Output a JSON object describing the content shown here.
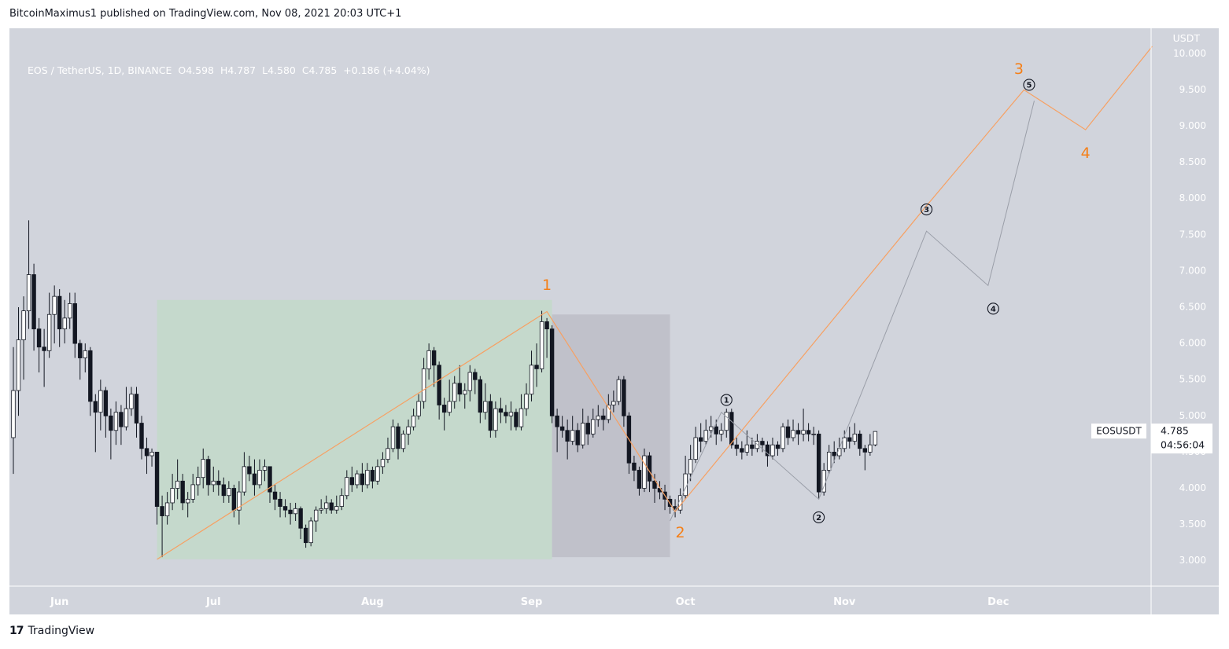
{
  "header": {
    "published": "BitcoinMaximus1 published on TradingView.com, Nov 08, 2021 20:03 UTC+1"
  },
  "legend": {
    "symbol": "EOS / TetherUS, 1D, BINANCE",
    "open_label": "O",
    "open": "4.598",
    "high_label": "H",
    "high": "4.787",
    "low_label": "L",
    "low": "4.580",
    "close_label": "C",
    "close": "4.785",
    "change": "+0.186 (+4.04%)"
  },
  "footer": {
    "brand": "TradingView",
    "mark": "17"
  },
  "colors": {
    "background": "#d1d4dc",
    "wave_orange": "#f7a062",
    "wave_label": "#f57f17",
    "sub_wave": "#9a9ea8",
    "green_zone": "#c5d9cc",
    "grey_zone": "#c0c1ca",
    "up_candle": "#ffffff",
    "down_candle": "#131722"
  },
  "chart_data": {
    "type": "candlestick",
    "title": "EOS / TetherUS, 1D, BINANCE",
    "currency": "USDT",
    "ylim": [
      2.65,
      10.35
    ],
    "y_ticks": [
      "3.000",
      "3.500",
      "4.000",
      "4.500",
      "5.000",
      "5.500",
      "6.000",
      "6.500",
      "7.000",
      "7.500",
      "8.000",
      "8.500",
      "9.000",
      "9.500",
      "10.000"
    ],
    "x_ticks": [
      {
        "label": "Jun",
        "day": 9
      },
      {
        "label": "Jul",
        "day": 39
      },
      {
        "label": "Aug",
        "day": 70
      },
      {
        "label": "Sep",
        "day": 101
      },
      {
        "label": "Oct",
        "day": 131
      },
      {
        "label": "Nov",
        "day": 162
      },
      {
        "label": "Dec",
        "day": 192
      }
    ],
    "x_range_days": [
      0,
      222
    ],
    "last_price": {
      "symbol": "EOSUSDT",
      "price": "4.785",
      "countdown": "04:56:04"
    },
    "zones": [
      {
        "name": "impulse-wave-1",
        "start_day": 28,
        "end_day": 105,
        "low": 3.02,
        "high": 6.6
      },
      {
        "name": "correction-wave-2",
        "start_day": 105,
        "end_day": 128,
        "low": 3.05,
        "high": 6.4
      }
    ],
    "orange_wave": {
      "points": [
        [
          28,
          3.02
        ],
        [
          104,
          6.44
        ],
        [
          129,
          3.68
        ],
        [
          178,
          7.9
        ],
        [
          197,
          9.5
        ],
        [
          209,
          8.95
        ],
        [
          222,
          10.1
        ]
      ],
      "labels": [
        {
          "text": "1",
          "day": 104,
          "price": 6.8
        },
        {
          "text": "2",
          "day": 130,
          "price": 3.38
        },
        {
          "text": "3",
          "day": 196,
          "price": 9.78
        },
        {
          "text": "4",
          "day": 209,
          "price": 8.62
        }
      ]
    },
    "sub_wave": {
      "points": [
        [
          128,
          3.55
        ],
        [
          138,
          5.05
        ],
        [
          157,
          3.85
        ],
        [
          178,
          7.55
        ],
        [
          190,
          6.8
        ],
        [
          199,
          9.35
        ]
      ],
      "labels": [
        {
          "text": "1",
          "day": 139,
          "price": 5.22
        },
        {
          "text": "2",
          "day": 157,
          "price": 3.6
        },
        {
          "text": "3",
          "day": 178,
          "price": 7.85
        },
        {
          "text": "4",
          "day": 191,
          "price": 6.48
        },
        {
          "text": "5",
          "day": 198,
          "price": 9.57
        }
      ]
    },
    "candles": [
      [
        4.7,
        5.35,
        5.95,
        4.2
      ],
      [
        5.35,
        6.05,
        6.5,
        5.0
      ],
      [
        6.05,
        6.45,
        6.65,
        5.5
      ],
      [
        6.45,
        6.95,
        7.7,
        6.2
      ],
      [
        6.95,
        6.2,
        7.1,
        5.9
      ],
      [
        6.2,
        5.95,
        6.35,
        5.6
      ],
      [
        5.95,
        5.9,
        6.2,
        5.4
      ],
      [
        5.9,
        6.4,
        6.7,
        5.8
      ],
      [
        6.4,
        6.65,
        6.8,
        6.0
      ],
      [
        6.65,
        6.2,
        6.75,
        5.95
      ],
      [
        6.2,
        6.35,
        6.6,
        6.0
      ],
      [
        6.35,
        6.55,
        6.7,
        6.2
      ],
      [
        6.55,
        6.0,
        6.7,
        5.8
      ],
      [
        6.0,
        5.8,
        6.05,
        5.5
      ],
      [
        5.8,
        5.9,
        6.0,
        5.6
      ],
      [
        5.9,
        5.2,
        5.95,
        5.0
      ],
      [
        5.2,
        5.05,
        5.3,
        4.5
      ],
      [
        5.05,
        5.35,
        5.5,
        4.8
      ],
      [
        5.35,
        5.0,
        5.4,
        4.7
      ],
      [
        5.0,
        4.8,
        5.1,
        4.4
      ],
      [
        4.8,
        5.05,
        5.2,
        4.6
      ],
      [
        5.05,
        4.85,
        5.15,
        4.6
      ],
      [
        4.85,
        5.1,
        5.4,
        4.8
      ],
      [
        5.1,
        5.3,
        5.4,
        5.0
      ],
      [
        5.3,
        4.9,
        5.4,
        4.7
      ],
      [
        4.9,
        4.55,
        5.0,
        4.4
      ],
      [
        4.55,
        4.45,
        4.7,
        4.2
      ],
      [
        4.45,
        4.5,
        4.55,
        4.3
      ],
      [
        4.5,
        3.75,
        4.5,
        3.5
      ],
      [
        3.75,
        3.62,
        3.9,
        3.05
      ],
      [
        3.62,
        3.8,
        3.95,
        3.5
      ],
      [
        3.8,
        4.0,
        4.2,
        3.7
      ],
      [
        4.0,
        4.1,
        4.4,
        3.85
      ],
      [
        4.1,
        3.8,
        4.2,
        3.7
      ],
      [
        3.8,
        3.85,
        3.95,
        3.6
      ],
      [
        3.85,
        4.05,
        4.2,
        3.8
      ],
      [
        4.05,
        4.15,
        4.3,
        3.9
      ],
      [
        4.15,
        4.4,
        4.55,
        4.0
      ],
      [
        4.4,
        4.05,
        4.45,
        3.9
      ],
      [
        4.05,
        4.1,
        4.3,
        3.95
      ],
      [
        4.1,
        4.05,
        4.25,
        3.9
      ],
      [
        4.05,
        3.9,
        4.15,
        3.8
      ],
      [
        3.9,
        4.0,
        4.1,
        3.8
      ],
      [
        4.0,
        3.7,
        4.05,
        3.6
      ],
      [
        3.7,
        3.95,
        4.1,
        3.5
      ],
      [
        3.95,
        4.3,
        4.5,
        3.9
      ],
      [
        4.3,
        4.2,
        4.45,
        4.1
      ],
      [
        4.2,
        4.05,
        4.4,
        3.9
      ],
      [
        4.05,
        4.25,
        4.4,
        4.0
      ],
      [
        4.25,
        4.3,
        4.4,
        4.1
      ],
      [
        4.3,
        3.95,
        4.3,
        3.8
      ],
      [
        3.95,
        3.85,
        4.05,
        3.7
      ],
      [
        3.85,
        3.75,
        3.95,
        3.6
      ],
      [
        3.75,
        3.7,
        3.85,
        3.6
      ],
      [
        3.7,
        3.65,
        3.8,
        3.5
      ],
      [
        3.65,
        3.72,
        3.8,
        3.55
      ],
      [
        3.72,
        3.45,
        3.75,
        3.3
      ],
      [
        3.45,
        3.25,
        3.5,
        3.18
      ],
      [
        3.25,
        3.55,
        3.6,
        3.2
      ],
      [
        3.55,
        3.7,
        3.75,
        3.4
      ],
      [
        3.7,
        3.72,
        3.85,
        3.65
      ],
      [
        3.72,
        3.8,
        3.9,
        3.65
      ],
      [
        3.8,
        3.7,
        3.85,
        3.65
      ],
      [
        3.7,
        3.75,
        3.9,
        3.65
      ],
      [
        3.75,
        3.9,
        4.0,
        3.7
      ],
      [
        3.9,
        4.15,
        4.25,
        3.85
      ],
      [
        4.15,
        4.05,
        4.3,
        3.95
      ],
      [
        4.05,
        4.2,
        4.25,
        4.0
      ],
      [
        4.2,
        4.05,
        4.35,
        3.95
      ],
      [
        4.05,
        4.25,
        4.35,
        4.0
      ],
      [
        4.25,
        4.1,
        4.3,
        4.0
      ],
      [
        4.1,
        4.3,
        4.4,
        4.05
      ],
      [
        4.3,
        4.4,
        4.5,
        4.2
      ],
      [
        4.4,
        4.55,
        4.7,
        4.35
      ],
      [
        4.55,
        4.85,
        4.95,
        4.5
      ],
      [
        4.85,
        4.55,
        4.9,
        4.4
      ],
      [
        4.55,
        4.75,
        4.8,
        4.5
      ],
      [
        4.75,
        4.85,
        4.95,
        4.6
      ],
      [
        4.85,
        5.0,
        5.1,
        4.8
      ],
      [
        5.0,
        5.2,
        5.3,
        4.95
      ],
      [
        5.2,
        5.65,
        5.8,
        5.1
      ],
      [
        5.65,
        5.9,
        6.0,
        5.5
      ],
      [
        5.9,
        5.7,
        5.95,
        5.4
      ],
      [
        5.7,
        5.15,
        5.75,
        4.95
      ],
      [
        5.15,
        5.05,
        5.25,
        4.8
      ],
      [
        5.05,
        5.2,
        5.5,
        5.0
      ],
      [
        5.2,
        5.45,
        5.55,
        5.1
      ],
      [
        5.45,
        5.3,
        5.7,
        5.2
      ],
      [
        5.3,
        5.35,
        5.45,
        5.1
      ],
      [
        5.35,
        5.6,
        5.7,
        5.2
      ],
      [
        5.6,
        5.5,
        5.65,
        5.3
      ],
      [
        5.5,
        5.05,
        5.55,
        4.9
      ],
      [
        5.05,
        5.2,
        5.45,
        4.95
      ],
      [
        5.2,
        4.8,
        5.3,
        4.7
      ],
      [
        4.8,
        5.1,
        5.2,
        4.7
      ],
      [
        5.1,
        5.05,
        5.25,
        4.9
      ],
      [
        5.05,
        5.0,
        5.15,
        4.9
      ],
      [
        5.0,
        5.05,
        5.2,
        4.8
      ],
      [
        5.05,
        4.85,
        5.1,
        4.8
      ],
      [
        4.85,
        5.1,
        5.3,
        4.8
      ],
      [
        5.1,
        5.3,
        5.45,
        5.0
      ],
      [
        5.3,
        5.7,
        5.9,
        5.2
      ],
      [
        5.7,
        5.65,
        6.0,
        5.4
      ],
      [
        5.65,
        6.3,
        6.45,
        5.6
      ],
      [
        6.3,
        6.2,
        6.35,
        5.8
      ],
      [
        6.2,
        5.0,
        6.25,
        4.9
      ],
      [
        5.0,
        4.85,
        5.1,
        4.5
      ],
      [
        4.85,
        4.8,
        5.0,
        4.7
      ],
      [
        4.8,
        4.65,
        4.95,
        4.4
      ],
      [
        4.65,
        4.8,
        5.0,
        4.6
      ],
      [
        4.8,
        4.6,
        4.9,
        4.5
      ],
      [
        4.6,
        4.9,
        5.1,
        4.55
      ],
      [
        4.9,
        4.75,
        5.0,
        4.6
      ],
      [
        4.75,
        4.95,
        5.1,
        4.7
      ],
      [
        4.95,
        5.0,
        5.15,
        4.85
      ],
      [
        5.0,
        4.95,
        5.1,
        4.8
      ],
      [
        4.95,
        5.15,
        5.3,
        4.9
      ],
      [
        5.15,
        5.2,
        5.35,
        5.05
      ],
      [
        5.2,
        5.5,
        5.55,
        5.15
      ],
      [
        5.5,
        5.0,
        5.55,
        4.85
      ],
      [
        5.0,
        4.35,
        5.05,
        4.2
      ],
      [
        4.35,
        4.25,
        4.45,
        4.1
      ],
      [
        4.25,
        4.0,
        4.3,
        3.9
      ],
      [
        4.0,
        4.45,
        4.55,
        3.95
      ],
      [
        4.45,
        4.1,
        4.5,
        3.95
      ],
      [
        4.1,
        4.0,
        4.2,
        3.8
      ],
      [
        4.0,
        3.95,
        4.1,
        3.85
      ],
      [
        3.95,
        3.85,
        4.05,
        3.7
      ],
      [
        3.85,
        3.75,
        3.9,
        3.65
      ],
      [
        3.75,
        3.7,
        3.85,
        3.6
      ],
      [
        3.7,
        3.9,
        4.0,
        3.65
      ],
      [
        3.9,
        4.2,
        4.45,
        3.85
      ],
      [
        4.2,
        4.4,
        4.6,
        4.1
      ],
      [
        4.4,
        4.7,
        4.85,
        4.35
      ],
      [
        4.7,
        4.65,
        4.9,
        4.5
      ],
      [
        4.65,
        4.8,
        4.95,
        4.6
      ],
      [
        4.8,
        4.85,
        5.0,
        4.7
      ],
      [
        4.85,
        4.75,
        4.95,
        4.6
      ],
      [
        4.75,
        4.8,
        4.9,
        4.65
      ],
      [
        4.8,
        5.05,
        5.1,
        4.7
      ],
      [
        5.05,
        4.6,
        5.1,
        4.55
      ],
      [
        4.6,
        4.55,
        4.7,
        4.45
      ],
      [
        4.55,
        4.5,
        4.65,
        4.4
      ],
      [
        4.5,
        4.6,
        4.8,
        4.45
      ],
      [
        4.6,
        4.55,
        4.7,
        4.45
      ],
      [
        4.55,
        4.65,
        4.75,
        4.5
      ],
      [
        4.65,
        4.6,
        4.7,
        4.5
      ],
      [
        4.6,
        4.45,
        4.65,
        4.3
      ],
      [
        4.45,
        4.6,
        4.7,
        4.4
      ],
      [
        4.6,
        4.55,
        4.65,
        4.45
      ],
      [
        4.55,
        4.85,
        4.9,
        4.5
      ],
      [
        4.85,
        4.7,
        4.95,
        4.6
      ],
      [
        4.7,
        4.8,
        4.95,
        4.65
      ],
      [
        4.8,
        4.75,
        4.9,
        4.6
      ],
      [
        4.75,
        4.8,
        5.1,
        4.65
      ],
      [
        4.8,
        4.75,
        4.9,
        4.65
      ],
      [
        4.75,
        4.75,
        4.85,
        4.6
      ],
      [
        4.75,
        3.95,
        4.8,
        3.85
      ],
      [
        3.95,
        4.25,
        4.35,
        3.9
      ],
      [
        4.25,
        4.5,
        4.6,
        4.2
      ],
      [
        4.5,
        4.45,
        4.65,
        4.35
      ],
      [
        4.45,
        4.55,
        4.7,
        4.4
      ],
      [
        4.55,
        4.7,
        4.8,
        4.5
      ],
      [
        4.7,
        4.65,
        4.85,
        4.55
      ],
      [
        4.65,
        4.75,
        4.9,
        4.6
      ],
      [
        4.75,
        4.55,
        4.8,
        4.45
      ],
      [
        4.55,
        4.5,
        4.6,
        4.25
      ],
      [
        4.5,
        4.6,
        4.75,
        4.45
      ],
      [
        4.6,
        4.785,
        4.787,
        4.58
      ]
    ]
  }
}
